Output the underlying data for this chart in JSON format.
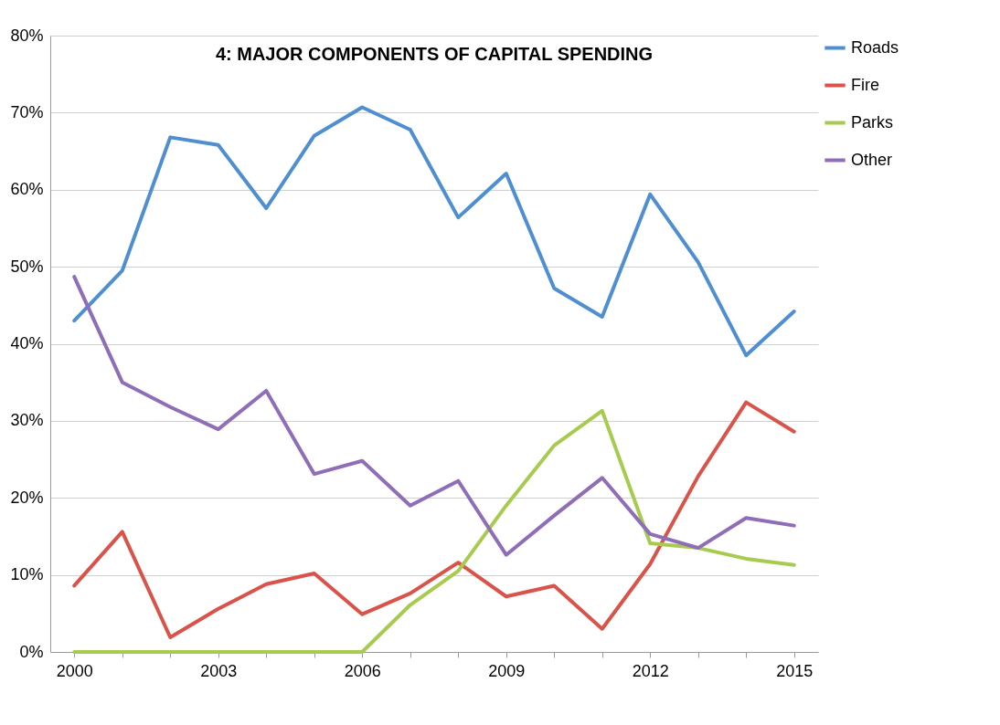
{
  "chart_data": {
    "type": "line",
    "title": "4:  MAJOR COMPONENTS OF CAPITAL SPENDING",
    "categories": [
      "2000",
      null,
      null,
      "2003",
      null,
      null,
      "2006",
      null,
      null,
      "2009",
      null,
      null,
      "2012",
      null,
      null,
      "2015"
    ],
    "series": [
      {
        "name": "Roads",
        "color": "#4f8fd1",
        "values": [
          43.0,
          49.5,
          66.8,
          65.8,
          57.6,
          67.0,
          70.7,
          67.8,
          56.4,
          62.1,
          47.2,
          43.5,
          59.4,
          50.6,
          38.5,
          44.2
        ]
      },
      {
        "name": "Fire",
        "color": "#d9534a",
        "values": [
          8.6,
          15.6,
          1.9,
          5.6,
          8.8,
          10.2,
          4.9,
          7.6,
          11.6,
          7.2,
          8.6,
          3.0,
          11.4,
          22.8,
          32.4,
          28.6
        ]
      },
      {
        "name": "Parks",
        "color": "#a6cb4f",
        "values": [
          0,
          0,
          0,
          0,
          0,
          0,
          0,
          6.1,
          10.5,
          19.0,
          26.8,
          31.3,
          14.1,
          13.5,
          12.1,
          11.3
        ]
      },
      {
        "name": "Other",
        "color": "#8f6db7",
        "values": [
          48.7,
          35.0,
          31.8,
          28.9,
          33.9,
          23.1,
          24.8,
          19.0,
          22.2,
          12.6,
          17.7,
          22.6,
          15.3,
          13.5,
          17.4,
          16.4
        ]
      }
    ],
    "ylim": [
      0,
      80
    ],
    "yticks": [
      {
        "value": 0,
        "label": "0%"
      },
      {
        "value": 10,
        "label": "10%"
      },
      {
        "value": 20,
        "label": "20%"
      },
      {
        "value": 30,
        "label": "30%"
      },
      {
        "value": 40,
        "label": "40%"
      },
      {
        "value": 50,
        "label": "50%"
      },
      {
        "value": 60,
        "label": "60%"
      },
      {
        "value": 70,
        "label": "70%"
      },
      {
        "value": 80,
        "label": "80%"
      }
    ],
    "grid": "y",
    "legend": "right",
    "marker": "none",
    "line_style": "solid"
  }
}
